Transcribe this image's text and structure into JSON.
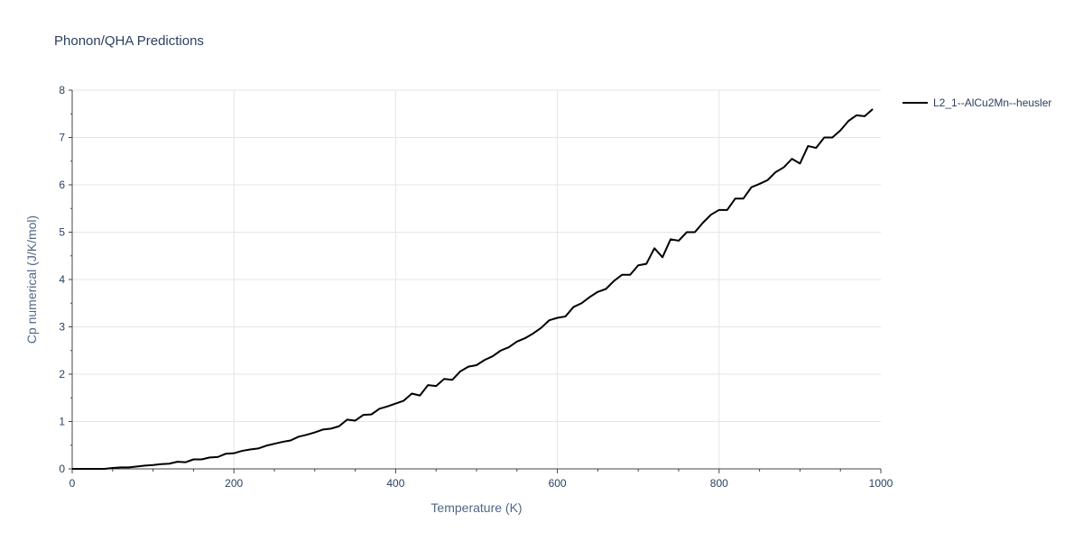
{
  "chart_data": {
    "type": "line",
    "title": "Phonon/QHA Predictions",
    "xlabel": "Temperature (K)",
    "ylabel": "Cp numerical (J/K/mol)",
    "xlim": [
      0,
      1000
    ],
    "ylim": [
      0,
      8
    ],
    "x_ticks": [
      0,
      200,
      400,
      600,
      800,
      1000
    ],
    "y_ticks": [
      0,
      1,
      2,
      3,
      4,
      5,
      6,
      7,
      8
    ],
    "grid": true,
    "legend_position": "top-right",
    "series": [
      {
        "name": "L2_1--AlCu2Mn--heusler",
        "color": "#000000",
        "x": [
          0,
          10,
          20,
          30,
          40,
          50,
          60,
          70,
          80,
          90,
          100,
          110,
          120,
          130,
          140,
          150,
          160,
          170,
          180,
          190,
          200,
          210,
          220,
          230,
          240,
          250,
          260,
          270,
          280,
          290,
          300,
          310,
          320,
          330,
          340,
          350,
          360,
          370,
          380,
          390,
          400,
          410,
          420,
          430,
          440,
          450,
          460,
          470,
          480,
          490,
          500,
          510,
          520,
          530,
          540,
          550,
          560,
          570,
          580,
          590,
          600,
          610,
          620,
          630,
          640,
          650,
          660,
          670,
          680,
          690,
          700,
          710,
          720,
          730,
          740,
          750,
          760,
          770,
          780,
          790,
          800,
          810,
          820,
          830,
          840,
          850,
          860,
          870,
          880,
          890,
          900,
          910,
          920,
          930,
          940,
          950,
          960,
          970,
          980,
          990
        ],
        "y": [
          0,
          0,
          0,
          0,
          0,
          0.02,
          0.03,
          0.03,
          0.05,
          0.07,
          0.08,
          0.1,
          0.11,
          0.15,
          0.14,
          0.2,
          0.2,
          0.24,
          0.25,
          0.32,
          0.33,
          0.38,
          0.41,
          0.43,
          0.49,
          0.53,
          0.57,
          0.6,
          0.68,
          0.72,
          0.77,
          0.83,
          0.85,
          0.9,
          1.04,
          1.02,
          1.14,
          1.15,
          1.27,
          1.32,
          1.38,
          1.44,
          1.59,
          1.55,
          1.77,
          1.75,
          1.9,
          1.88,
          2.06,
          2.16,
          2.19,
          2.3,
          2.38,
          2.5,
          2.57,
          2.69,
          2.76,
          2.86,
          2.98,
          3.14,
          3.19,
          3.22,
          3.42,
          3.5,
          3.63,
          3.74,
          3.8,
          3.97,
          4.1,
          4.1,
          4.3,
          4.33,
          4.66,
          4.47,
          4.85,
          4.82,
          5.0,
          5.0,
          5.2,
          5.37,
          5.47,
          5.47,
          5.71,
          5.71,
          5.95,
          6.02,
          6.1,
          6.27,
          6.37,
          6.55,
          6.45,
          6.82,
          6.78,
          7.0,
          7.0,
          7.15,
          7.35,
          7.47,
          7.45,
          7.6
        ]
      }
    ]
  }
}
